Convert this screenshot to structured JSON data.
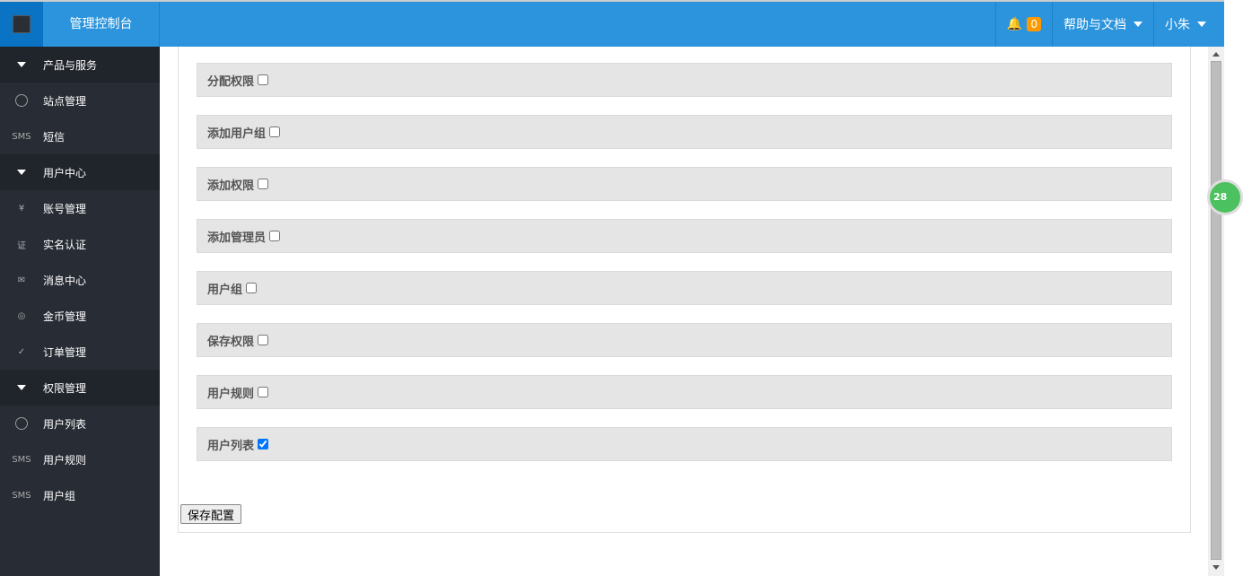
{
  "header": {
    "brand": "管理控制台",
    "notification_count": "0",
    "help": "帮助与文档",
    "user": "小朱"
  },
  "sidebar": {
    "items": [
      {
        "label": "产品与服务",
        "type": "group",
        "icon": "triangle-down"
      },
      {
        "label": "站点管理",
        "type": "item",
        "icon": "circle-icon"
      },
      {
        "label": "短信",
        "type": "item",
        "icon": "sms-icon"
      },
      {
        "label": "用户中心",
        "type": "group",
        "icon": "triangle-down"
      },
      {
        "label": "账号管理",
        "type": "item",
        "icon": "account-icon"
      },
      {
        "label": "实名认证",
        "type": "item",
        "icon": "certificate-icon"
      },
      {
        "label": "消息中心",
        "type": "item",
        "icon": "envelope-icon"
      },
      {
        "label": "金币管理",
        "type": "item",
        "icon": "coins-icon"
      },
      {
        "label": "订单管理",
        "type": "item",
        "icon": "clipboard-check-icon"
      },
      {
        "label": "权限管理",
        "type": "group",
        "icon": "triangle-down"
      },
      {
        "label": "用户列表",
        "type": "item",
        "icon": "circle-icon"
      },
      {
        "label": "用户规则",
        "type": "item",
        "icon": "sms-icon"
      },
      {
        "label": "用户组",
        "type": "item",
        "icon": "sms-icon"
      }
    ]
  },
  "permissions": [
    {
      "label": "分配权限",
      "checked": false
    },
    {
      "label": "添加用户组",
      "checked": false
    },
    {
      "label": "添加权限",
      "checked": false
    },
    {
      "label": "添加管理员",
      "checked": false
    },
    {
      "label": "用户组",
      "checked": false
    },
    {
      "label": "保存权限",
      "checked": false
    },
    {
      "label": "用户规则",
      "checked": false
    },
    {
      "label": "用户列表",
      "checked": true
    }
  ],
  "save_label": "保存配置",
  "float_badge": "28"
}
